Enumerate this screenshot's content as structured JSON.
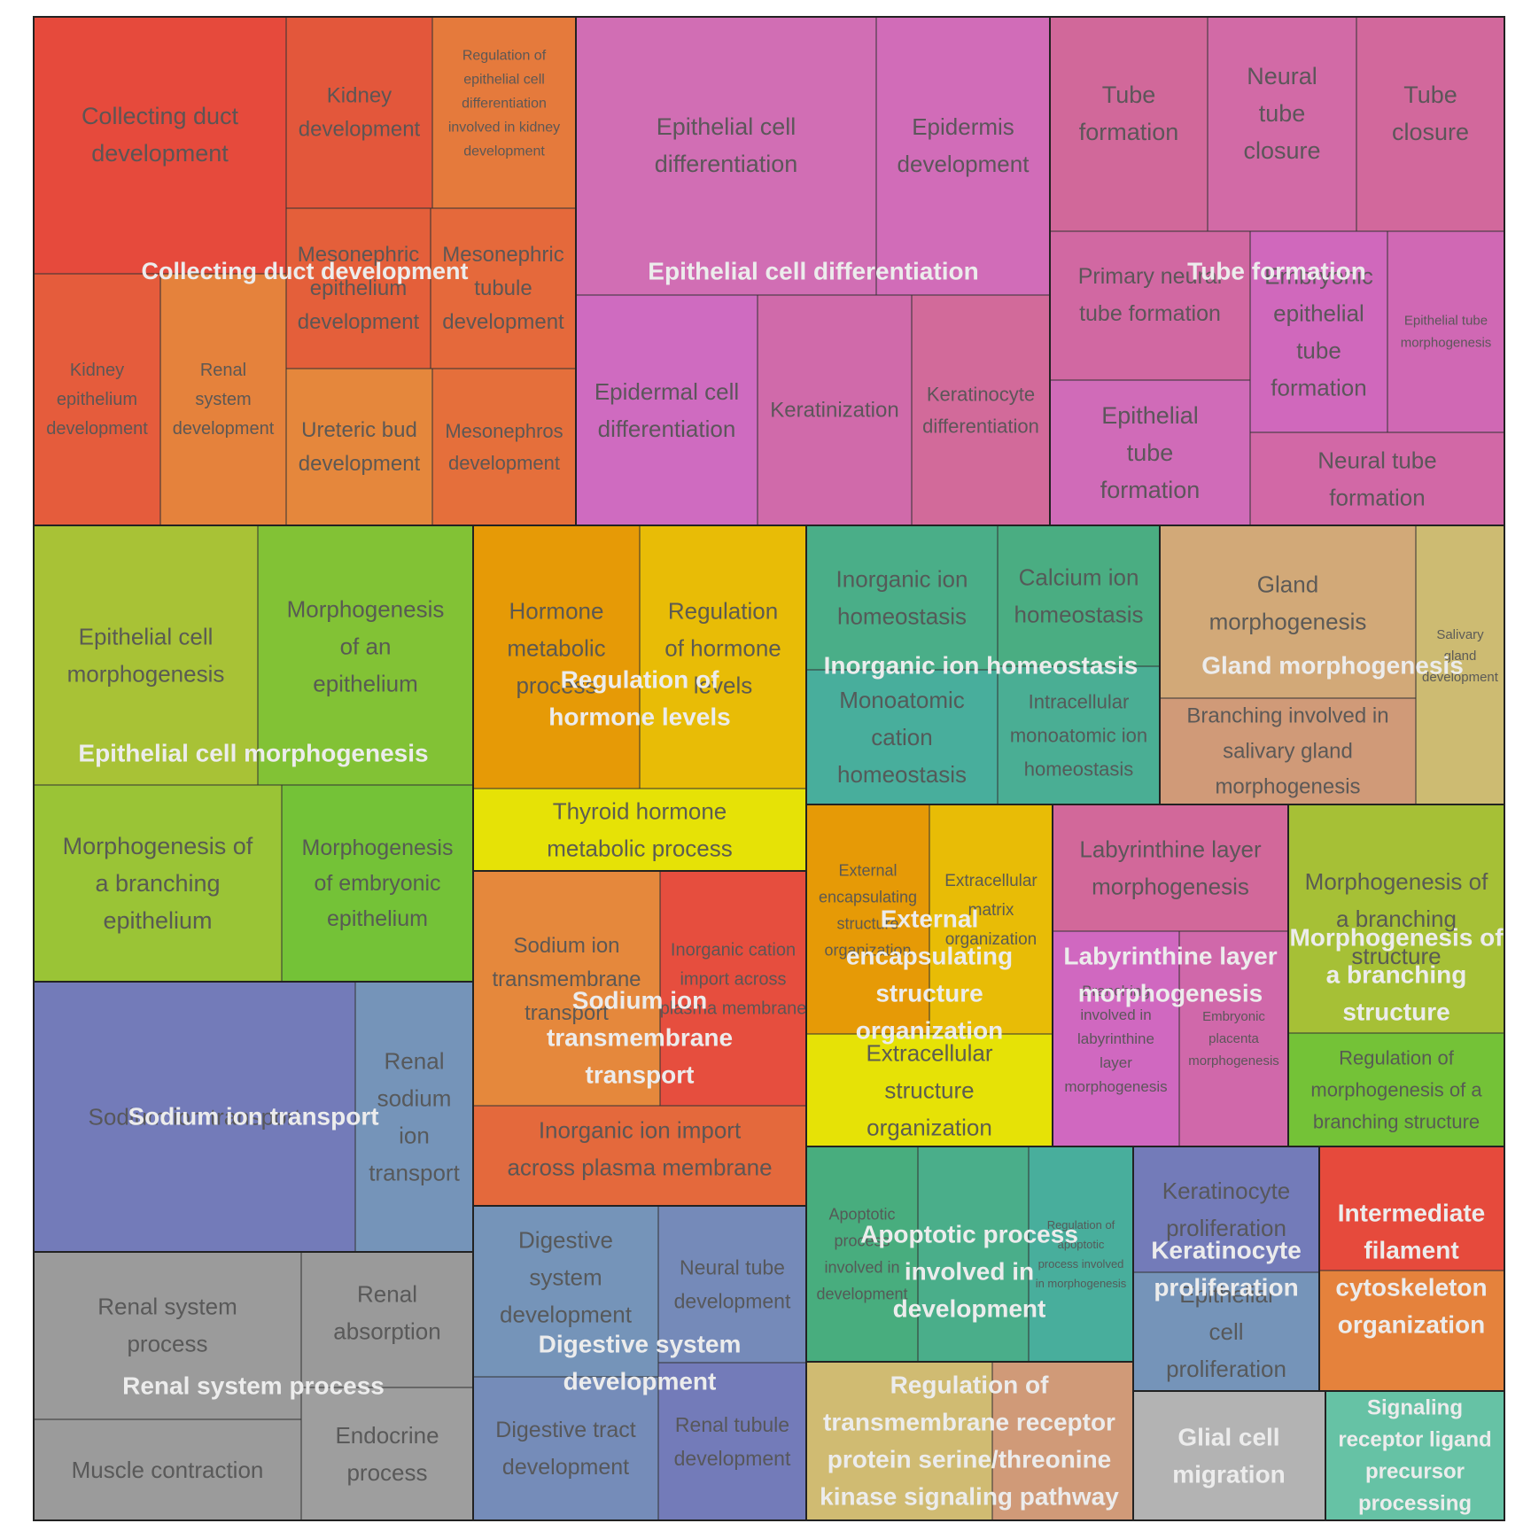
{
  "chart_data": {
    "type": "treemap",
    "groups": [
      {
        "name": "Collecting duct development",
        "items": [
          {
            "term": "Collecting duct development",
            "color": "#e64a3c"
          },
          {
            "term": "Kidney development",
            "color": "#e3573b"
          },
          {
            "term": "Regulation of epithelial cell differentiation involved in kidney development",
            "color": "#e57a3c"
          },
          {
            "term": "Mesonephric epithelium development",
            "color": "#e45f3a"
          },
          {
            "term": "Mesonephric tubule development",
            "color": "#e5693b"
          },
          {
            "term": "Kidney epithelium development",
            "color": "#e55c3c"
          },
          {
            "term": "Renal system development",
            "color": "#e5823c"
          },
          {
            "term": "Ureteric bud development",
            "color": "#e5873c"
          },
          {
            "term": "Mesonephros development",
            "color": "#e56f3b"
          }
        ]
      },
      {
        "name": "Epithelial cell differentiation",
        "items": [
          {
            "term": "Epithelial cell differentiation",
            "color": "#d16eb4"
          },
          {
            "term": "Epidermis development",
            "color": "#d16cb8"
          },
          {
            "term": "Epidermal cell differentiation",
            "color": "#cf6bc0"
          },
          {
            "term": "Keratinization",
            "color": "#d06aaa"
          },
          {
            "term": "Keratinocyte differentiation",
            "color": "#d26a9a"
          }
        ]
      },
      {
        "name": "Tube formation",
        "items": [
          {
            "term": "Tube formation",
            "color": "#d1689a"
          },
          {
            "term": "Neural tube closure",
            "color": "#d26aa6"
          },
          {
            "term": "Tube closure",
            "color": "#d2689c"
          },
          {
            "term": "Primary neural tube formation",
            "color": "#d168a2"
          },
          {
            "term": "Embryonic epithelial tube formation",
            "color": "#d068bc"
          },
          {
            "term": "Epithelial tube morphogenesis",
            "color": "#d068b4"
          },
          {
            "term": "Epithelial tube formation",
            "color": "#d06bb8"
          },
          {
            "term": "Neural tube formation",
            "color": "#d268a6"
          }
        ]
      },
      {
        "name": "Epithelial cell morphogenesis",
        "items": [
          {
            "term": "Epithelial cell morphogenesis",
            "color": "#a8c236"
          },
          {
            "term": "Morphogenesis of an epithelium",
            "color": "#82c235"
          },
          {
            "term": "Morphogenesis of a branching epithelium",
            "color": "#9ac436"
          },
          {
            "term": "Morphogenesis of embryonic epithelium",
            "color": "#74c237"
          }
        ]
      },
      {
        "name": "Regulation of hormone levels",
        "items": [
          {
            "term": "Hormone metabolic process",
            "color": "#e69a06"
          },
          {
            "term": "Regulation of hormone levels",
            "color": "#e8bc06"
          },
          {
            "term": "Thyroid hormone metabolic process",
            "color": "#e6e206"
          }
        ]
      },
      {
        "name": "Inorganic ion homeostasis",
        "items": [
          {
            "term": "Inorganic ion homeostasis",
            "color": "#4aae88"
          },
          {
            "term": "Calcium ion homeostasis",
            "color": "#4aad82"
          },
          {
            "term": "Monoatomic cation homeostasis",
            "color": "#48ae9c"
          },
          {
            "term": "Intracellular monoatomic ion homeostasis",
            "color": "#4aae94"
          }
        ]
      },
      {
        "name": "Gland morphogenesis",
        "items": [
          {
            "term": "Gland morphogenesis",
            "color": "#d2a978"
          },
          {
            "term": "Salivary gland development",
            "color": "#cdbb72"
          },
          {
            "term": "Branching involved in salivary gland morphogenesis",
            "color": "#d09a78"
          }
        ]
      },
      {
        "name": "Sodium ion transmembrane transport",
        "items": [
          {
            "term": "Sodium ion transmembrane transport",
            "color": "#e5883c"
          },
          {
            "term": "Inorganic cation import across plasma membrane",
            "color": "#e64e3e"
          },
          {
            "term": "Inorganic ion import across plasma membrane",
            "color": "#e4693c"
          }
        ]
      },
      {
        "name": "External encapsulating structure organization",
        "items": [
          {
            "term": "External encapsulating structure organization",
            "color": "#e69a06"
          },
          {
            "term": "Extracellular matrix organization",
            "color": "#e8bc06"
          },
          {
            "term": "Extracellular structure organization",
            "color": "#e6e206"
          }
        ]
      },
      {
        "name": "Labyrinthine layer morphogenesis",
        "items": [
          {
            "term": "Labyrinthine layer morphogenesis",
            "color": "#d2689a"
          },
          {
            "term": "Branching involved in labyrinthine layer morphogenesis",
            "color": "#d068c0"
          },
          {
            "term": "Embryonic placenta morphogenesis",
            "color": "#d068aa"
          }
        ]
      },
      {
        "name": "Morphogenesis of a branching structure",
        "items": [
          {
            "term": "Morphogenesis of a branching structure",
            "color": "#a6c036"
          },
          {
            "term": "Regulation of morphogenesis of a branching structure",
            "color": "#74c237"
          }
        ]
      },
      {
        "name": "Sodium ion transport",
        "items": [
          {
            "term": "Sodium ion transport",
            "color": "#737bb9"
          },
          {
            "term": "Renal sodium ion transport",
            "color": "#7594b9"
          }
        ]
      },
      {
        "name": "Renal system process",
        "items": [
          {
            "term": "Renal system process",
            "color": "#9b9b9b"
          },
          {
            "term": "Renal absorption",
            "color": "#9a9a9a"
          },
          {
            "term": "Muscle contraction",
            "color": "#9b9b9b"
          },
          {
            "term": "Endocrine process",
            "color": "#9e9e9e"
          }
        ]
      },
      {
        "name": "Digestive system development",
        "items": [
          {
            "term": "Digestive system development",
            "color": "#7594b9"
          },
          {
            "term": "Neural tube development",
            "color": "#758ab9"
          },
          {
            "term": "Digestive tract development",
            "color": "#758cb9"
          },
          {
            "term": "Renal tubule development",
            "color": "#737bb9"
          }
        ]
      },
      {
        "name": "Apoptotic process involved in development",
        "items": [
          {
            "term": "Apoptotic process involved in development",
            "color": "#48ad7e"
          },
          {
            "term": "",
            "color": "#4aae8a"
          },
          {
            "term": "Regulation of apoptotic process involved in morphogenesis",
            "color": "#48ae9c"
          }
        ]
      },
      {
        "name": "Keratinocyte proliferation",
        "items": [
          {
            "term": "Keratinocyte proliferation",
            "color": "#737bb9"
          },
          {
            "term": "Epithelial cell proliferation",
            "color": "#7594b9"
          }
        ]
      },
      {
        "name": "Intermediate filament cytoskeleton organization",
        "items": [
          {
            "term": "",
            "color": "#e64a3c"
          },
          {
            "term": "",
            "color": "#e5823c"
          }
        ]
      },
      {
        "name": "Regulation of transmembrane receptor protein serine/threonine kinase signaling pathway",
        "items": [
          {
            "term": "",
            "color": "#d0bb72"
          },
          {
            "term": "",
            "color": "#d09a78"
          }
        ]
      },
      {
        "name": "Glial cell migration",
        "items": [
          {
            "term": "",
            "color": "#b3b3b3"
          }
        ]
      },
      {
        "name": "Signaling receptor ligand precursor processing",
        "items": [
          {
            "term": "",
            "color": "#66c2a5"
          }
        ]
      }
    ]
  }
}
